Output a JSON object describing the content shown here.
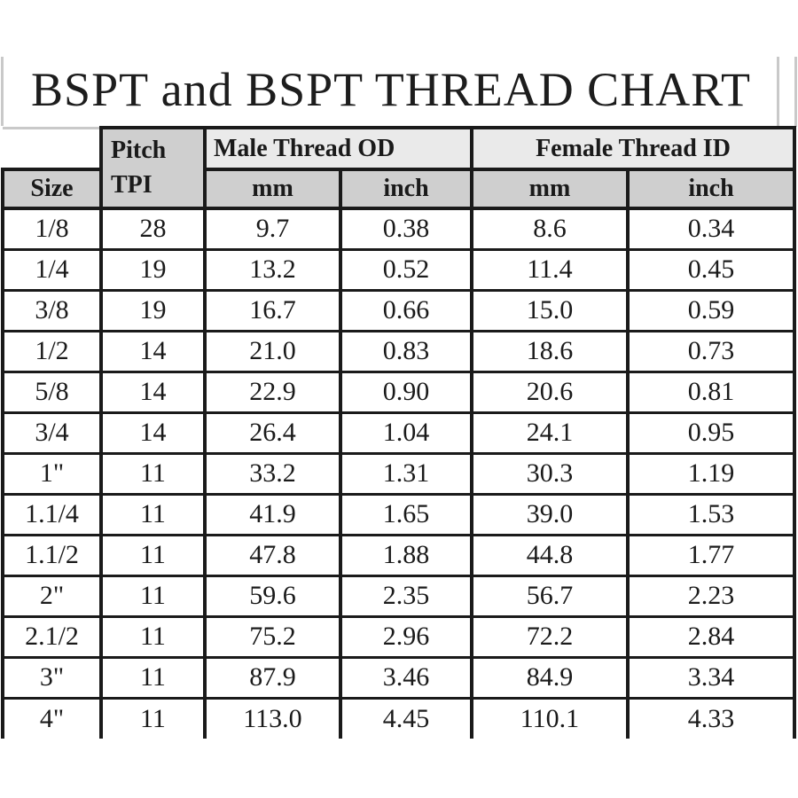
{
  "title": "BSPT and BSPT THREAD CHART",
  "colors": {
    "background": "#ffffff",
    "border": "#1a1a1a",
    "header_fill": "#cfcfcf",
    "group_header_fill": "#eaeaea",
    "remnant_gridline": "#c9c9c9",
    "text": "#1a1a1a"
  },
  "chart_data": {
    "type": "table",
    "title": "BSPT and BSPT THREAD CHART",
    "headers": {
      "size": "Size",
      "pitch_line1": "Pitch",
      "pitch_line2": "TPI",
      "male_group": "Male Thread OD",
      "female_group": "Female Thread ID",
      "male_mm": "mm",
      "male_inch": "inch",
      "female_mm": "mm",
      "female_inch": "inch"
    },
    "columns": [
      "Size",
      "Pitch TPI",
      "Male Thread OD mm",
      "Male Thread OD inch",
      "Female Thread ID mm",
      "Female Thread ID inch"
    ],
    "rows": [
      {
        "size": "1/8",
        "tpi": "28",
        "male_mm": "9.7",
        "male_inch": "0.38",
        "female_mm": "8.6",
        "female_inch": "0.34"
      },
      {
        "size": "1/4",
        "tpi": "19",
        "male_mm": "13.2",
        "male_inch": "0.52",
        "female_mm": "11.4",
        "female_inch": "0.45"
      },
      {
        "size": "3/8",
        "tpi": "19",
        "male_mm": "16.7",
        "male_inch": "0.66",
        "female_mm": "15.0",
        "female_inch": "0.59"
      },
      {
        "size": "1/2",
        "tpi": "14",
        "male_mm": "21.0",
        "male_inch": "0.83",
        "female_mm": "18.6",
        "female_inch": "0.73"
      },
      {
        "size": "5/8",
        "tpi": "14",
        "male_mm": "22.9",
        "male_inch": "0.90",
        "female_mm": "20.6",
        "female_inch": "0.81"
      },
      {
        "size": "3/4",
        "tpi": "14",
        "male_mm": "26.4",
        "male_inch": "1.04",
        "female_mm": "24.1",
        "female_inch": "0.95"
      },
      {
        "size": "1\"",
        "tpi": "11",
        "male_mm": "33.2",
        "male_inch": "1.31",
        "female_mm": "30.3",
        "female_inch": "1.19"
      },
      {
        "size": "1.1/4",
        "tpi": "11",
        "male_mm": "41.9",
        "male_inch": "1.65",
        "female_mm": "39.0",
        "female_inch": "1.53"
      },
      {
        "size": "1.1/2",
        "tpi": "11",
        "male_mm": "47.8",
        "male_inch": "1.88",
        "female_mm": "44.8",
        "female_inch": "1.77"
      },
      {
        "size": "2\"",
        "tpi": "11",
        "male_mm": "59.6",
        "male_inch": "2.35",
        "female_mm": "56.7",
        "female_inch": "2.23"
      },
      {
        "size": "2.1/2",
        "tpi": "11",
        "male_mm": "75.2",
        "male_inch": "2.96",
        "female_mm": "72.2",
        "female_inch": "2.84"
      },
      {
        "size": "3\"",
        "tpi": "11",
        "male_mm": "87.9",
        "male_inch": "3.46",
        "female_mm": "84.9",
        "female_inch": "3.34"
      },
      {
        "size": "4\"",
        "tpi": "11",
        "male_mm": "113.0",
        "male_inch": "4.45",
        "female_mm": "110.1",
        "female_inch": "4.33"
      }
    ]
  }
}
